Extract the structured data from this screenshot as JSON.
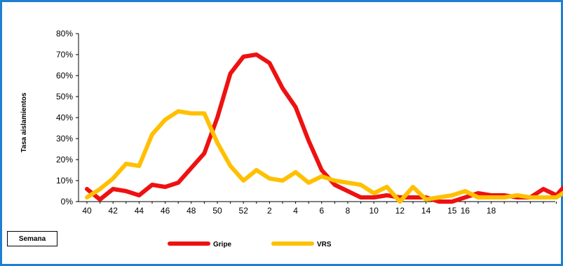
{
  "chart_data": {
    "type": "line",
    "title": "",
    "xlabel": "Semana",
    "ylabel": "Tasa aislamientos",
    "ylim": [
      0,
      80
    ],
    "y_ticks": [
      "0%",
      "10%",
      "20%",
      "30%",
      "40%",
      "50%",
      "60%",
      "70%",
      "80%"
    ],
    "x_tick_labels": [
      "40",
      "42",
      "44",
      "46",
      "48",
      "50",
      "52",
      "2",
      "4",
      "6",
      "8",
      "10",
      "12",
      "14",
      "15",
      "16",
      "18"
    ],
    "x_tick_positions": [
      0,
      2,
      4,
      6,
      8,
      10,
      12,
      14,
      16,
      18,
      20,
      22,
      24,
      26,
      28,
      29,
      31
    ],
    "grid": false,
    "legend_position": "bottom",
    "series": [
      {
        "name": "Gripe",
        "color": "#ee1111",
        "values": [
          6,
          1,
          6,
          5,
          3,
          8,
          7,
          9,
          16,
          23,
          40,
          61,
          69,
          70,
          66,
          54,
          45,
          29,
          15,
          8,
          5,
          2,
          2,
          3,
          2,
          2,
          2,
          0,
          0,
          2,
          4,
          3,
          3,
          2,
          2,
          6,
          3,
          10
        ]
      },
      {
        "name": "VRS",
        "color": "#ffc000",
        "values": [
          2,
          6,
          11,
          18,
          17,
          32,
          39,
          43,
          42,
          42,
          28,
          17,
          10,
          15,
          11,
          10,
          14,
          9,
          12,
          10,
          9,
          8,
          4,
          7,
          0,
          7,
          1,
          2,
          3,
          5,
          2,
          2,
          2,
          3,
          2,
          2,
          2,
          6
        ]
      }
    ]
  }
}
